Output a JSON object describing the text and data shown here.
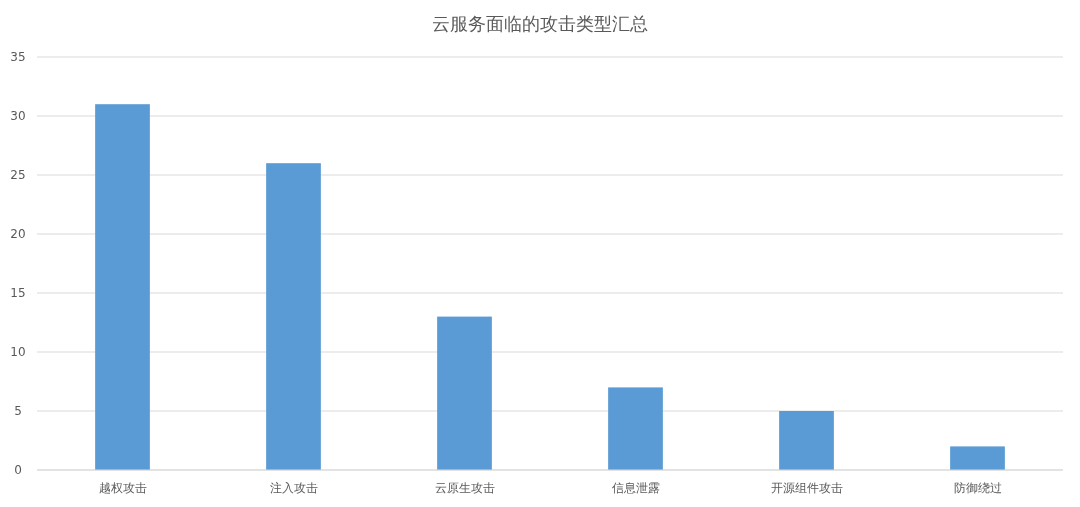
{
  "chart_data": {
    "type": "bar",
    "title": "云服务面临的攻击类型汇总",
    "categories": [
      "越权攻击",
      "注入攻击",
      "云原生攻击",
      "信息泄露",
      "开源组件攻击",
      "防御绕过"
    ],
    "values": [
      31,
      26,
      13,
      7,
      5,
      2
    ],
    "color": "#5b9bd5",
    "ylim": [
      0,
      35
    ],
    "yticks": [
      0,
      5,
      10,
      15,
      20,
      25,
      30,
      35
    ],
    "grid": "y"
  }
}
